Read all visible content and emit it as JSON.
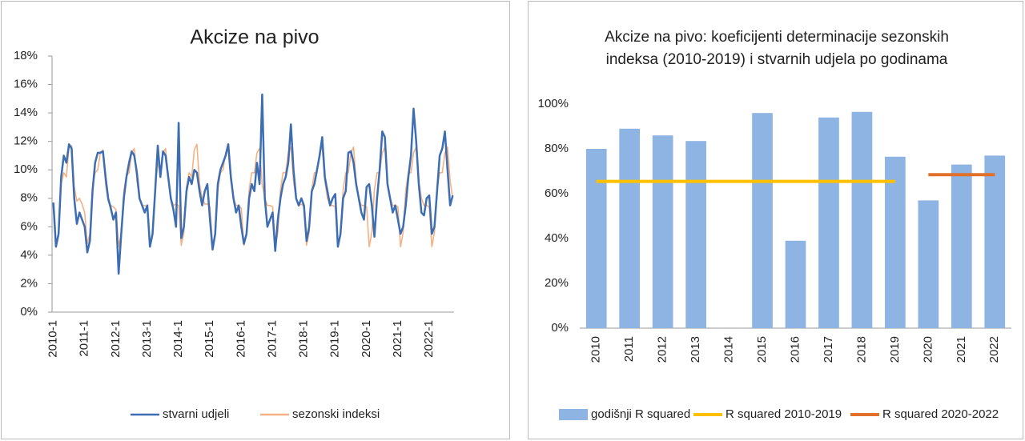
{
  "chart_data": [
    {
      "type": "line",
      "title": "Akcize na pivo",
      "categories": [
        "2010-1",
        null,
        null,
        null,
        null,
        null,
        null,
        null,
        null,
        null,
        null,
        null,
        "2011-1",
        null,
        null,
        null,
        null,
        null,
        null,
        null,
        null,
        null,
        null,
        null,
        "2012-1",
        null,
        null,
        null,
        null,
        null,
        null,
        null,
        null,
        null,
        null,
        null,
        "2013-1",
        null,
        null,
        null,
        null,
        null,
        null,
        null,
        null,
        null,
        null,
        null,
        "2014-1",
        null,
        null,
        null,
        null,
        null,
        null,
        null,
        null,
        null,
        null,
        null,
        "2015-1",
        null,
        null,
        null,
        null,
        null,
        null,
        null,
        null,
        null,
        null,
        null,
        "2016-1",
        null,
        null,
        null,
        null,
        null,
        null,
        null,
        null,
        null,
        null,
        null,
        "2017-1",
        null,
        null,
        null,
        null,
        null,
        null,
        null,
        null,
        null,
        null,
        null,
        "2018-1",
        null,
        null,
        null,
        null,
        null,
        null,
        null,
        null,
        null,
        null,
        null,
        "2019-1",
        null,
        null,
        null,
        null,
        null,
        null,
        null,
        null,
        null,
        null,
        null,
        "2020-1",
        null,
        null,
        null,
        null,
        null,
        null,
        null,
        null,
        null,
        null,
        null,
        "2021-1",
        null,
        null,
        null,
        null,
        null,
        null,
        null,
        null,
        null,
        null,
        null,
        "2022-1",
        null,
        null,
        null,
        null,
        null,
        null,
        null,
        null,
        null
      ],
      "series": [
        {
          "name": "stvarni udjeli",
          "color": "#3d6eb3",
          "values": [
            7.7,
            4.6,
            5.5,
            9.5,
            11,
            10.5,
            11.8,
            11.5,
            8,
            6.2,
            7,
            6.5,
            6,
            4.2,
            5,
            8.5,
            10.5,
            11.2,
            11.2,
            11.3,
            9.5,
            8,
            7.3,
            6.5,
            7,
            2.7,
            5.5,
            8,
            9.5,
            10.5,
            11.3,
            11,
            9.8,
            8,
            7.5,
            7,
            7.5,
            4.6,
            5.5,
            8.5,
            11.7,
            9.5,
            11.3,
            11,
            9.5,
            8,
            7.2,
            6,
            13.3,
            5.2,
            6,
            8.5,
            9.5,
            9,
            10,
            9.8,
            8.5,
            7.5,
            8.5,
            9,
            6.5,
            4.4,
            5.5,
            9,
            10,
            10.5,
            11,
            11.8,
            9.5,
            8,
            7,
            7.5,
            6,
            4.8,
            5.5,
            8,
            9,
            8.5,
            10.5,
            9,
            15.3,
            8,
            6,
            6.5,
            7,
            4.3,
            6.5,
            8,
            9,
            9.5,
            10.5,
            13.2,
            10,
            8,
            7.5,
            8,
            7.5,
            5,
            6,
            8.5,
            9,
            10,
            11,
            12.3,
            9.5,
            8.5,
            7.5,
            8,
            8.3,
            4.6,
            5.5,
            8,
            8.5,
            11.2,
            11.3,
            10.5,
            9,
            8,
            7,
            6.5,
            8.8,
            9,
            7.5,
            5.3,
            8,
            10,
            12.7,
            12.3,
            9,
            8,
            7,
            7.5,
            6.5,
            5.5,
            6,
            7.5,
            9.5,
            11,
            14.3,
            12,
            9,
            7,
            6.8,
            8,
            8.2,
            5.5,
            6,
            8.5,
            11,
            11.5,
            12.7,
            10,
            7.5,
            8.2
          ]
        },
        {
          "name": "sezonski indeksi",
          "color": "#f5b183",
          "values": [
            7.3,
            4.8,
            5.6,
            9,
            9.8,
            9.5,
            11.6,
            11.7,
            8.8,
            7.8,
            8,
            7.6,
            7,
            4.8,
            5.5,
            8.8,
            9.8,
            10,
            11.2,
            11.4,
            9,
            7.8,
            7.5,
            7.4,
            7.2,
            4.6,
            5.5,
            8.5,
            9.6,
            9.8,
            11.2,
            11.5,
            9.2,
            8,
            7.5,
            7.5,
            7.4,
            4.7,
            5.6,
            8.6,
            10.5,
            9.8,
            11.2,
            11.5,
            9.5,
            8,
            7.5,
            7.6,
            7.5,
            4.7,
            5.6,
            8.8,
            9.8,
            9.5,
            11.4,
            11.8,
            9,
            8,
            7.6,
            7.6,
            7.4,
            4.6,
            5.6,
            8.6,
            9.8,
            10,
            11.2,
            11.6,
            9.2,
            8,
            7.5,
            7.5,
            7.3,
            4.7,
            5.6,
            8.6,
            9.8,
            9.8,
            11.2,
            11.5,
            9,
            8,
            7.5,
            7.5,
            7.4,
            4.6,
            5.6,
            8.6,
            9.8,
            9.8,
            11.2,
            11.6,
            9.2,
            8,
            7.5,
            7.6,
            7.4,
            4.7,
            5.6,
            8.6,
            9.8,
            9.8,
            11.2,
            11.6,
            9.2,
            8,
            7.5,
            7.5,
            7.4,
            4.6,
            5.6,
            8.6,
            9.8,
            9.8,
            11.2,
            11.6,
            9.2,
            8,
            7.5,
            7.5,
            7.4,
            4.6,
            5.6,
            8.6,
            9.8,
            9.8,
            11.2,
            11.6,
            9.2,
            8,
            7.5,
            7.5,
            7.4,
            4.6,
            5.6,
            8.6,
            9.8,
            9.8,
            11.2,
            11.6,
            9.2,
            8,
            7.5,
            7.5,
            7.4,
            4.6,
            5.6,
            8.6,
            9.8,
            9.8,
            11.2,
            11.6,
            9.2,
            8
          ]
        }
      ],
      "ylim": [
        0,
        18
      ],
      "yticks": [
        {
          "value": 0,
          "label": "0%"
        },
        {
          "value": 2,
          "label": "2%"
        },
        {
          "value": 4,
          "label": "4%"
        },
        {
          "value": 6,
          "label": "6%"
        },
        {
          "value": 8,
          "label": "8%"
        },
        {
          "value": 10,
          "label": "10%"
        },
        {
          "value": 12,
          "label": "12%"
        },
        {
          "value": 14,
          "label": "14%"
        },
        {
          "value": 16,
          "label": "16%"
        },
        {
          "value": 18,
          "label": "18%"
        }
      ],
      "grid": false,
      "legend": "bottom"
    },
    {
      "type": "bar",
      "title": [
        "Akcize na pivo: koeficijenti determinacije sezonskih",
        "indeksa (2010-2019) i stvarnih udjela po godinama"
      ],
      "categories": [
        "2010",
        "2011",
        "2012",
        "2013",
        "2014",
        "2015",
        "2016",
        "2017",
        "2018",
        "2019",
        "2020",
        "2021",
        "2022"
      ],
      "series": [
        {
          "name": "godišnji R squared",
          "type": "bar",
          "color": "#8eb4e3",
          "values": [
            80,
            89,
            86,
            83.5,
            null,
            96,
            39,
            94,
            96.5,
            76.5,
            57,
            73,
            77
          ]
        },
        {
          "name": "R squared 2010-2019",
          "type": "line",
          "color": "#ffc000",
          "values": [
            65.5,
            65.5,
            65.5,
            65.5,
            65.5,
            65.5,
            65.5,
            65.5,
            65.5,
            65.5,
            null,
            null,
            null
          ]
        },
        {
          "name": "R squared 2020-2022",
          "type": "line",
          "color": "#e0702a",
          "values": [
            null,
            null,
            null,
            null,
            null,
            null,
            null,
            null,
            null,
            null,
            68.5,
            68.5,
            68.5
          ]
        }
      ],
      "ylim": [
        0,
        100
      ],
      "yticks": [
        {
          "value": 0,
          "label": "0%"
        },
        {
          "value": 20,
          "label": "20%"
        },
        {
          "value": 40,
          "label": "40%"
        },
        {
          "value": 60,
          "label": "60%"
        },
        {
          "value": 80,
          "label": "80%"
        },
        {
          "value": 100,
          "label": "100%"
        }
      ],
      "grid": false,
      "legend": "bottom"
    }
  ]
}
